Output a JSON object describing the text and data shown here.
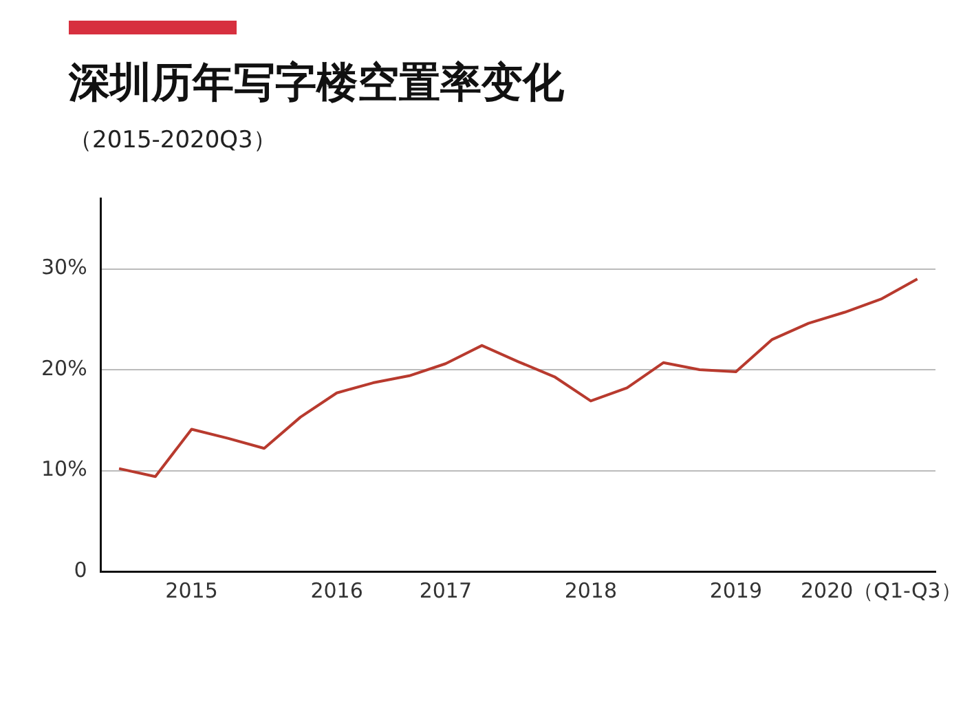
{
  "chart_data": {
    "type": "line",
    "title": "深圳历年写字楼空置率变化",
    "subtitle": "（2015-2020Q3）",
    "categories": [
      null,
      null,
      "2015",
      null,
      null,
      null,
      "2016",
      null,
      null,
      "2017",
      null,
      null,
      null,
      "2018",
      null,
      null,
      null,
      "2019",
      null,
      null,
      null,
      "2020（Q1-Q3）",
      null
    ],
    "series": [
      {
        "color": "#b83a2e",
        "values": [
          10.2,
          9.4,
          14.1,
          13.2,
          12.2,
          15.3,
          17.7,
          18.7,
          19.4,
          20.6,
          22.4,
          20.8,
          19.3,
          16.9,
          18.2,
          20.7,
          20.0,
          19.8,
          23.0,
          24.6,
          25.7,
          27.0,
          29.0
        ]
      }
    ],
    "ylim": [
      0,
      37
    ],
    "yticks": [
      {
        "value": 0,
        "label": "0"
      },
      {
        "value": 10,
        "label": "10%"
      },
      {
        "value": 20,
        "label": "20%"
      },
      {
        "value": 30,
        "label": "30%"
      }
    ],
    "grid": "y",
    "legend": false,
    "marker": "none",
    "line_style": "solid"
  }
}
